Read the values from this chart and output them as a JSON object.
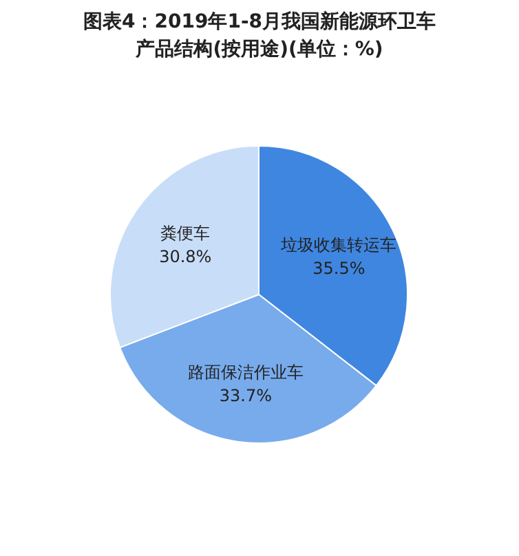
{
  "chart_data": {
    "type": "pie",
    "title": "图表4：2019年1-8月我国新能源环卫车产品结构(按用途)(单位：%)",
    "categories": [
      "垃圾收集转运车",
      "路面保洁作业车",
      "粪便车"
    ],
    "values": [
      35.5,
      33.7,
      30.8
    ],
    "colors": [
      "#3f86e0",
      "#78abec",
      "#c8ddf8"
    ],
    "value_labels": [
      "35.5%",
      "33.7%",
      "30.8%"
    ]
  }
}
